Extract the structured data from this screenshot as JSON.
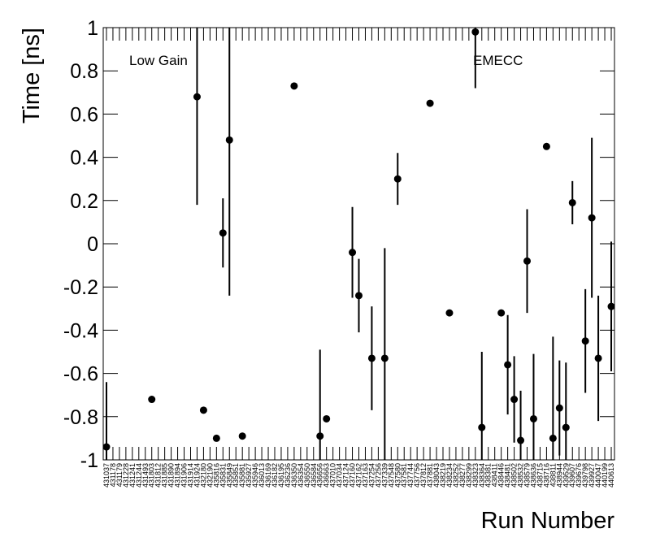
{
  "chart_data": {
    "type": "scatter",
    "y_label": "Time [ns]",
    "x_label": "Run Number",
    "annotations": [
      "Low Gain",
      "EMECC"
    ],
    "color": "#000000",
    "ylim": [
      -1,
      1
    ],
    "yticks": [
      -1,
      -0.8,
      -0.6,
      -0.4,
      -0.2,
      0,
      0.2,
      0.4,
      0.6,
      0.8,
      1
    ],
    "categories": [
      "431037",
      "431178",
      "431179",
      "431228",
      "431241",
      "431244",
      "431493",
      "431803",
      "431812",
      "431885",
      "431890",
      "431894",
      "431906",
      "431914",
      "431924",
      "432180",
      "432190",
      "435816",
      "435831",
      "435849",
      "435851",
      "435881",
      "435927",
      "435946",
      "436013",
      "436169",
      "436182",
      "436195",
      "436236",
      "436350",
      "436354",
      "436550",
      "436584",
      "436656",
      "436663",
      "437010",
      "437034",
      "437124",
      "437160",
      "437162",
      "437163",
      "437254",
      "437256",
      "437339",
      "437548",
      "437580",
      "437581",
      "437744",
      "437756",
      "437812",
      "437881",
      "438043",
      "438219",
      "438234",
      "438252",
      "438277",
      "438299",
      "438323",
      "438364",
      "438381",
      "438411",
      "438446",
      "438481",
      "438502",
      "438532",
      "438579",
      "438636",
      "438715",
      "438716",
      "438811",
      "438944",
      "439529",
      "439607",
      "439676",
      "439798",
      "439927",
      "440047",
      "440199",
      "440613"
    ],
    "values": [
      -0.94,
      null,
      null,
      null,
      null,
      null,
      null,
      -0.72,
      null,
      null,
      null,
      null,
      null,
      null,
      0.68,
      -0.77,
      null,
      -0.9,
      0.05,
      0.48,
      null,
      -0.89,
      null,
      null,
      null,
      null,
      null,
      null,
      null,
      0.73,
      null,
      null,
      null,
      -0.89,
      -0.81,
      null,
      null,
      null,
      -0.04,
      -0.24,
      null,
      -0.53,
      null,
      -0.53,
      null,
      0.3,
      null,
      null,
      null,
      null,
      0.65,
      null,
      null,
      -0.32,
      null,
      null,
      null,
      0.98,
      -0.85,
      null,
      null,
      -0.32,
      -0.56,
      -0.72,
      -0.91,
      -0.08,
      -0.81,
      null,
      0.45,
      -0.9,
      -0.76,
      -0.85,
      0.19,
      null,
      -0.45,
      0.12,
      -0.53,
      null,
      -0.29
    ],
    "errors": [
      0.3,
      null,
      null,
      null,
      null,
      null,
      null,
      0,
      null,
      null,
      null,
      null,
      null,
      null,
      0.5,
      0,
      null,
      0,
      0.16,
      0.72,
      null,
      0,
      null,
      null,
      null,
      null,
      null,
      null,
      null,
      0,
      null,
      null,
      null,
      0.4,
      0,
      null,
      null,
      null,
      0.21,
      0.17,
      null,
      0.24,
      null,
      0.51,
      null,
      0.12,
      null,
      null,
      null,
      null,
      0,
      null,
      null,
      0,
      null,
      null,
      null,
      0.26,
      0.35,
      null,
      null,
      0,
      0.23,
      0.2,
      0.23,
      0.24,
      0.3,
      null,
      0,
      0.47,
      0.22,
      0.3,
      0.1,
      null,
      0.24,
      0.37,
      0.29,
      null,
      0.3
    ]
  }
}
